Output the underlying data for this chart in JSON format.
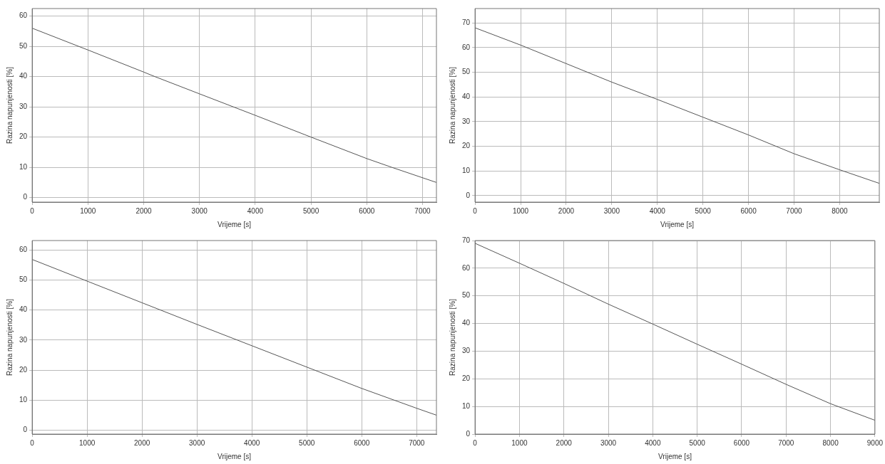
{
  "chart_data": [
    {
      "type": "line",
      "xlabel": "Vrijeme [s]",
      "ylabel": "Razina napunjenosti [%]",
      "grid": true,
      "marker": "none",
      "line_style": "solid",
      "series": [
        {
          "color": "#555555",
          "x": [
            0,
            1000,
            2000,
            2200,
            3000,
            4000,
            5000,
            6000,
            6450,
            7250
          ],
          "values": [
            56,
            48.8,
            41.5,
            40,
            34.3,
            27.2,
            20,
            12.9,
            10,
            5
          ]
        }
      ],
      "xlim": [
        0,
        7250
      ],
      "xticks": [
        0,
        1000,
        2000,
        3000,
        4000,
        5000,
        6000,
        7000
      ],
      "ylim": [
        -1.5,
        62.5
      ],
      "yticks": [
        0,
        10,
        20,
        30,
        40,
        50,
        60
      ]
    },
    {
      "type": "line",
      "xlabel": "Vrijeme [s]",
      "ylabel": "Razina napunjenosti [%]",
      "grid": true,
      "marker": "none",
      "line_style": "solid",
      "series": [
        {
          "color": "#555555",
          "x": [
            0,
            1000,
            2000,
            3000,
            4000,
            5000,
            6000,
            7000,
            8000,
            8870
          ],
          "values": [
            68,
            61,
            53.5,
            46,
            39,
            31.8,
            24.6,
            17,
            10.5,
            5
          ]
        }
      ],
      "xlim": [
        0,
        8870
      ],
      "xticks": [
        0,
        1000,
        2000,
        3000,
        4000,
        5000,
        6000,
        7000,
        8000
      ],
      "ylim": [
        -2.6,
        75.8
      ],
      "yticks": [
        0,
        10,
        20,
        30,
        40,
        50,
        60,
        70
      ]
    },
    {
      "type": "line",
      "xlabel": "Vrijeme [s]",
      "ylabel": "Razina napunjenosti [%]",
      "grid": true,
      "marker": "none",
      "line_style": "solid",
      "series": [
        {
          "color": "#555555",
          "x": [
            0,
            1000,
            2000,
            3000,
            4000,
            5000,
            6000,
            7000,
            7360
          ],
          "values": [
            56.8,
            49.6,
            42.4,
            35.2,
            28.1,
            21,
            13.9,
            7.3,
            5
          ]
        }
      ],
      "xlim": [
        0,
        7360
      ],
      "xticks": [
        0,
        1000,
        2000,
        3000,
        4000,
        5000,
        6000,
        7000
      ],
      "ylim": [
        -1.3,
        63.1
      ],
      "yticks": [
        0,
        10,
        20,
        30,
        40,
        50,
        60
      ]
    },
    {
      "type": "line",
      "xlabel": "Vrijeme [s]",
      "ylabel": "Razina napunjenosti [%]",
      "grid": true,
      "marker": "none",
      "line_style": "solid",
      "series": [
        {
          "color": "#555555",
          "x": [
            0,
            1000,
            2000,
            3000,
            4000,
            5000,
            6000,
            7000,
            8000,
            9000
          ],
          "values": [
            69,
            61.8,
            54.5,
            47,
            39.8,
            32.5,
            25.3,
            18,
            11,
            5
          ]
        }
      ],
      "xlim": [
        0,
        9000
      ],
      "xticks": [
        0,
        1000,
        2000,
        3000,
        4000,
        5000,
        6000,
        7000,
        8000,
        9000
      ],
      "ylim": [
        0,
        70
      ],
      "yticks": [
        0,
        10,
        20,
        30,
        40,
        50,
        60,
        70
      ]
    }
  ]
}
